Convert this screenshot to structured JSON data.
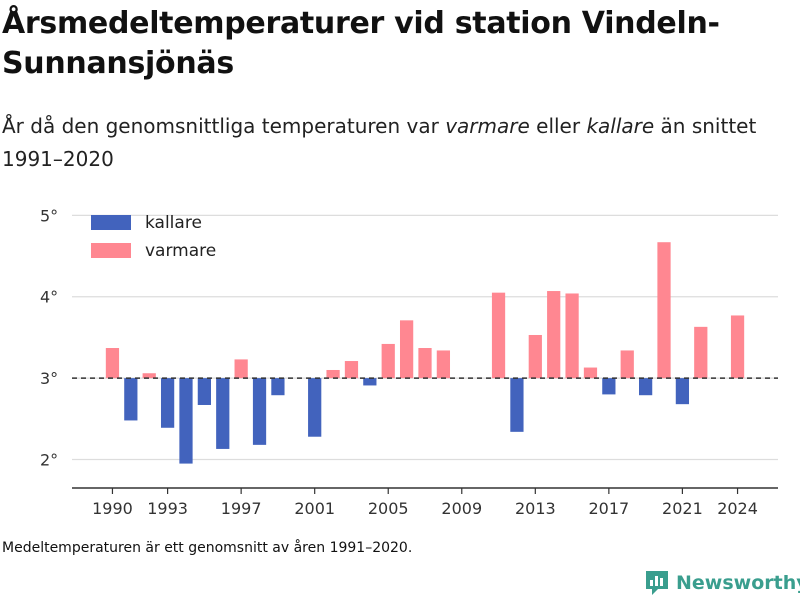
{
  "title": "Årsmedeltemperaturer vid station Vindeln-Sunnansjönäs",
  "subtitle": {
    "before": "År då den genomsnittliga temperaturen var ",
    "warm_word": "varmare",
    "middle": " eller ",
    "cold_word": "kallare",
    "after": " än snittet 1991–2020"
  },
  "footnote": "Medeltemperaturen är ett genomsnitt av åren 1991–2020.",
  "brand": "Newsworthy",
  "colors": {
    "kallare": "#4263bd",
    "varmare": "#ff8791",
    "grid": "#dddddd",
    "axis": "#333333",
    "baseline": "#333333",
    "brand": "#3a9e8e"
  },
  "chart_data": {
    "type": "bar",
    "baseline": 3.0,
    "ylim": [
      1.65,
      5.25
    ],
    "yticks": [
      2,
      3,
      4,
      5
    ],
    "ytick_labels": [
      "2°",
      "3°",
      "4°",
      "5°"
    ],
    "xlim": [
      1987.8,
      2026.2
    ],
    "xticks": [
      1990,
      1993,
      1997,
      2001,
      2005,
      2009,
      2013,
      2017,
      2021,
      2024
    ],
    "grid": true,
    "legend_position": "top-left",
    "legend": [
      {
        "key": "kallare",
        "label": "kallare"
      },
      {
        "key": "varmare",
        "label": "varmare"
      }
    ],
    "years": [
      1990,
      1991,
      1992,
      1993,
      1994,
      1995,
      1996,
      1997,
      1998,
      1999,
      2000,
      2001,
      2002,
      2003,
      2004,
      2005,
      2006,
      2007,
      2008,
      2009,
      2010,
      2011,
      2012,
      2013,
      2014,
      2015,
      2016,
      2017,
      2018,
      2019,
      2020,
      2021,
      2022,
      2023,
      2024
    ],
    "values": [
      3.37,
      2.48,
      3.06,
      2.39,
      1.95,
      2.67,
      2.13,
      3.23,
      2.18,
      2.79,
      null,
      2.28,
      3.1,
      3.21,
      2.91,
      3.42,
      3.71,
      3.37,
      3.34,
      null,
      null,
      4.05,
      2.34,
      3.53,
      4.07,
      4.04,
      3.13,
      2.8,
      3.34,
      2.79,
      4.67,
      2.68,
      3.63,
      null,
      3.77
    ]
  }
}
